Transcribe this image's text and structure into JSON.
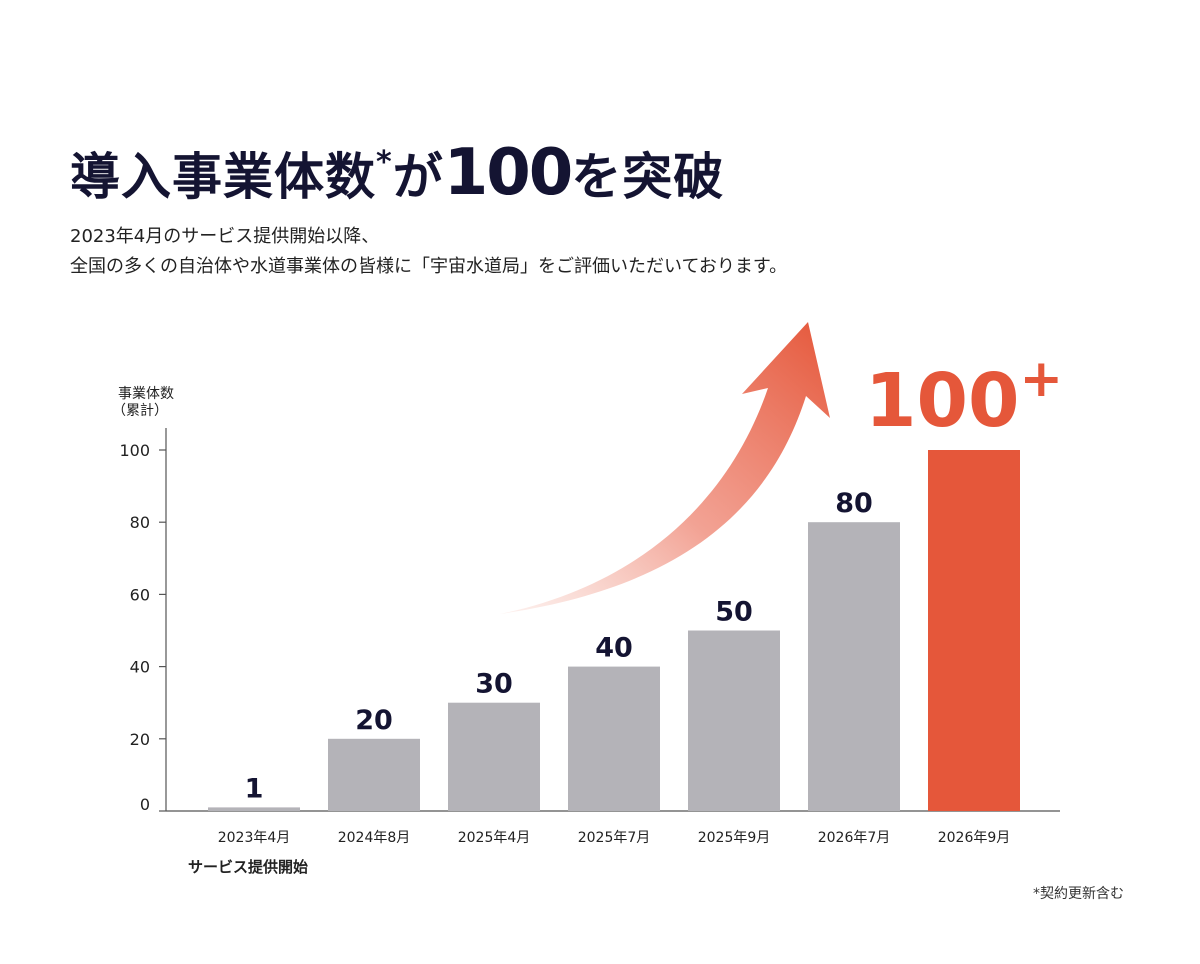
{
  "headline": {
    "part1": "導入事業体数",
    "asterisk": "*",
    "part2": "が",
    "number": "100",
    "part3": "を突破"
  },
  "subtitle": {
    "line1": "2023年4月のサービス提供開始以降、",
    "line2": "全国の多くの自治体や水道事業体の皆様に「宇宙水道局」をご評価いただいております。"
  },
  "footnote": "*契約更新含む",
  "colors": {
    "bar": "#b4b3b8",
    "highlight": "#e5573a",
    "text_dark": "#141432",
    "axis": "#555555"
  },
  "chart_data": {
    "type": "bar",
    "ylabel_line1": "事業体数",
    "ylabel_line2": "（累計）",
    "ylim": [
      0,
      100
    ],
    "yticks": [
      0,
      20,
      40,
      60,
      80,
      100
    ],
    "categories": [
      "2023年4月",
      "2024年8月",
      "2025年4月",
      "2025年7月",
      "2025年9月",
      "2026年7月",
      "2026年9月"
    ],
    "values": [
      1,
      20,
      30,
      40,
      50,
      80,
      100
    ],
    "data_labels": [
      "1",
      "20",
      "30",
      "40",
      "50",
      "80",
      "100"
    ],
    "highlight_label_suffix": "+",
    "highlight_index": 6,
    "first_category_note": "サービス提供開始",
    "grid": false
  }
}
